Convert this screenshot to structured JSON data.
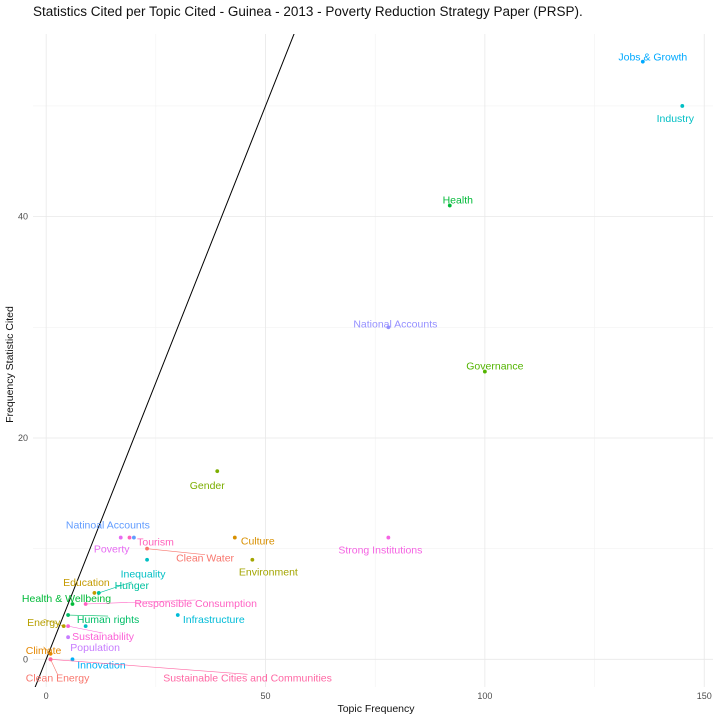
{
  "chart_data": {
    "type": "scatter",
    "title": "Statistics Cited per Topic Cited - Guinea - 2013 - Poverty Reduction Strategy Paper (PRSP).",
    "xlabel": "Topic Frequency",
    "ylabel": "Frequency Statistic Cited",
    "xlim": [
      -3,
      152
    ],
    "ylim": [
      -2.5,
      56.5
    ],
    "xticks": [
      0,
      50,
      100,
      150
    ],
    "yticks": [
      0,
      20,
      40
    ],
    "grid": true,
    "legend": "none",
    "reference_line": {
      "slope": 1,
      "intercept": 0,
      "color": "#000000"
    },
    "points": [
      {
        "label": "Jobs & Growth",
        "x": 136,
        "y": 54,
        "color": "#00A9FF",
        "label_dx": 10,
        "label_dy": -5
      },
      {
        "label": "Industry",
        "x": 145,
        "y": 50,
        "color": "#00BFC4",
        "label_dx": -7,
        "label_dy": 12
      },
      {
        "label": "Health",
        "x": 92,
        "y": 41,
        "color": "#00BA38",
        "label_dx": 8,
        "label_dy": -6
      },
      {
        "label": "National Accounts",
        "x": 78,
        "y": 30,
        "color": "#9590FF",
        "label_dx": 7,
        "label_dy": -4
      },
      {
        "label": "Governance",
        "x": 100,
        "y": 26,
        "color": "#53B400",
        "label_dx": 10,
        "label_dy": -6
      },
      {
        "label": "Gender",
        "x": 39,
        "y": 17,
        "color": "#7CAE00",
        "label_dx": -10,
        "label_dy": 14
      },
      {
        "label": "Natinoal Accounts",
        "x": 20,
        "y": 11,
        "color": "#619CFF",
        "label_dx": -26,
        "label_dy": -13
      },
      {
        "label": "Poverty",
        "x": 17,
        "y": 11,
        "color": "#E76BF3",
        "label_dx": -9,
        "label_dy": 11
      },
      {
        "label": "Tourism",
        "x": 19,
        "y": 11,
        "color": "#FF62BC",
        "label_dx": 26,
        "label_dy": 4
      },
      {
        "label": "Culture",
        "x": 43,
        "y": 11,
        "color": "#D89000",
        "label_dx": 23,
        "label_dy": 3
      },
      {
        "label": "Strong Institutions",
        "x": 78,
        "y": 11,
        "color": "#F564E3",
        "label_dx": -8,
        "label_dy": 12
      },
      {
        "label": "Clean Water",
        "x": 23,
        "y": 10,
        "color": "#F8766D",
        "label_dx": 58,
        "label_dy": 9,
        "leader": true
      },
      {
        "label": "Environment",
        "x": 47,
        "y": 9,
        "color": "#A3A500",
        "label_dx": 16,
        "label_dy": 12
      },
      {
        "label": "Inequality",
        "x": 23,
        "y": 9,
        "color": "#00BFC4",
        "label_dx": -4,
        "label_dy": 14
      },
      {
        "label": "Education",
        "x": 11,
        "y": 6,
        "color": "#C49A00",
        "label_dx": -8,
        "label_dy": -11
      },
      {
        "label": "Hunger",
        "x": 12,
        "y": 6,
        "color": "#00C19F",
        "label_dx": 33,
        "label_dy": -8,
        "leader": true
      },
      {
        "label": "Health & Wellbeing",
        "x": 6,
        "y": 5,
        "color": "#00BA38",
        "label_dx": -6,
        "label_dy": -6
      },
      {
        "label": "Responsible Consumption",
        "x": 9,
        "y": 5,
        "color": "#FF61C3",
        "label_dx": 110,
        "label_dy": -1,
        "leader": true
      },
      {
        "label": "Human rights",
        "x": 5,
        "y": 4,
        "color": "#00BE67",
        "label_dx": 40,
        "label_dy": 4,
        "leader": true
      },
      {
        "label": "Infrastructure",
        "x": 30,
        "y": 4,
        "color": "#00BCD8",
        "label_dx": 36,
        "label_dy": 4
      },
      {
        "label": "Energy",
        "x": 4,
        "y": 3,
        "color": "#B79F00",
        "label_dx": -20,
        "label_dy": -4,
        "leader": true
      },
      {
        "label": "Sustainability",
        "x": 5,
        "y": 3,
        "color": "#FB61D7",
        "label_dx": 35,
        "label_dy": 10,
        "leader": true
      },
      {
        "label": "Sustainability",
        "x": 9,
        "y": 3,
        "color": "#00BFC4",
        "label_dx": 0,
        "label_dy": 0,
        "hide_label": true
      },
      {
        "label": "Population",
        "x": 5,
        "y": 2,
        "color": "#C77CFF",
        "label_dx": 27,
        "label_dy": 10
      },
      {
        "label": "Climate",
        "x": 1,
        "y": 0.5,
        "color": "#E58700",
        "label_dx": -7,
        "label_dy": -4,
        "leader": true
      },
      {
        "label": "Innovation",
        "x": 6,
        "y": 0,
        "color": "#00B0F6",
        "label_dx": 29,
        "label_dy": 5
      },
      {
        "label": "Clean Energy",
        "x": 1,
        "y": 0,
        "color": "#F8766D",
        "label_dx": 7,
        "label_dy": 18,
        "leader": true
      },
      {
        "label": "Sustainable Cities and Communities",
        "x": 1,
        "y": 0,
        "color": "#FF67A4",
        "label_dx": 197,
        "label_dy": 18,
        "leader": true
      }
    ]
  }
}
